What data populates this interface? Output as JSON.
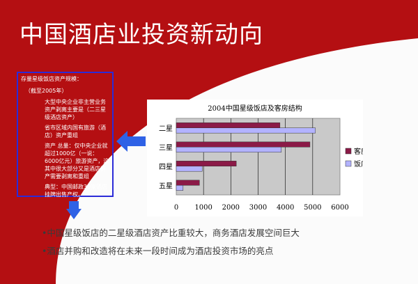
{
  "title": "中国酒店业投资新动向",
  "colors": {
    "background_red": "#b40f12",
    "box_border": "#2b2bd8",
    "arrow_blue": "#2f62e6",
    "series1": "#8b1a47",
    "series2": "#b3b3ff"
  },
  "info_box": {
    "heading": "存量星级饭店资产规模：",
    "sub": "（截至2005年）",
    "items": [
      "大型中央企业非主营业务资产剥离主要是（二三星级酒店资产）",
      "省市区域内国有旅游（酒店）资产重组",
      "资产 总量：仅中央企业就超过1000亿（一说：6000亿元）旅游资产，这其中很大部分又是酒店资产需要剥离和重组",
      "典型：中国邮政30家酒店挂牌出售产权。"
    ]
  },
  "bullets": [
    "•中国星级饭店的二星级酒店资产比重较大，商务酒店发展空间巨大",
    "•酒店并购和改造将在未来一段时间成为酒店投资市场的亮点"
  ],
  "chart_data": {
    "type": "bar",
    "title": "2004中国星级饭店及客房结构",
    "categories": [
      "二星",
      "三星",
      "四星",
      "五星"
    ],
    "series": [
      {
        "name": "客房数",
        "values": [
          3800,
          4900,
          2200,
          850
        ]
      },
      {
        "name": "饭店数",
        "values": [
          5100,
          3850,
          950,
          250
        ]
      }
    ],
    "x_ticks": [
      "0",
      "1000",
      "2000",
      "3000",
      "4000",
      "5000",
      "6000"
    ],
    "xlim": [
      0,
      6000
    ],
    "orientation": "horizontal",
    "grid": true,
    "legend": "right"
  }
}
